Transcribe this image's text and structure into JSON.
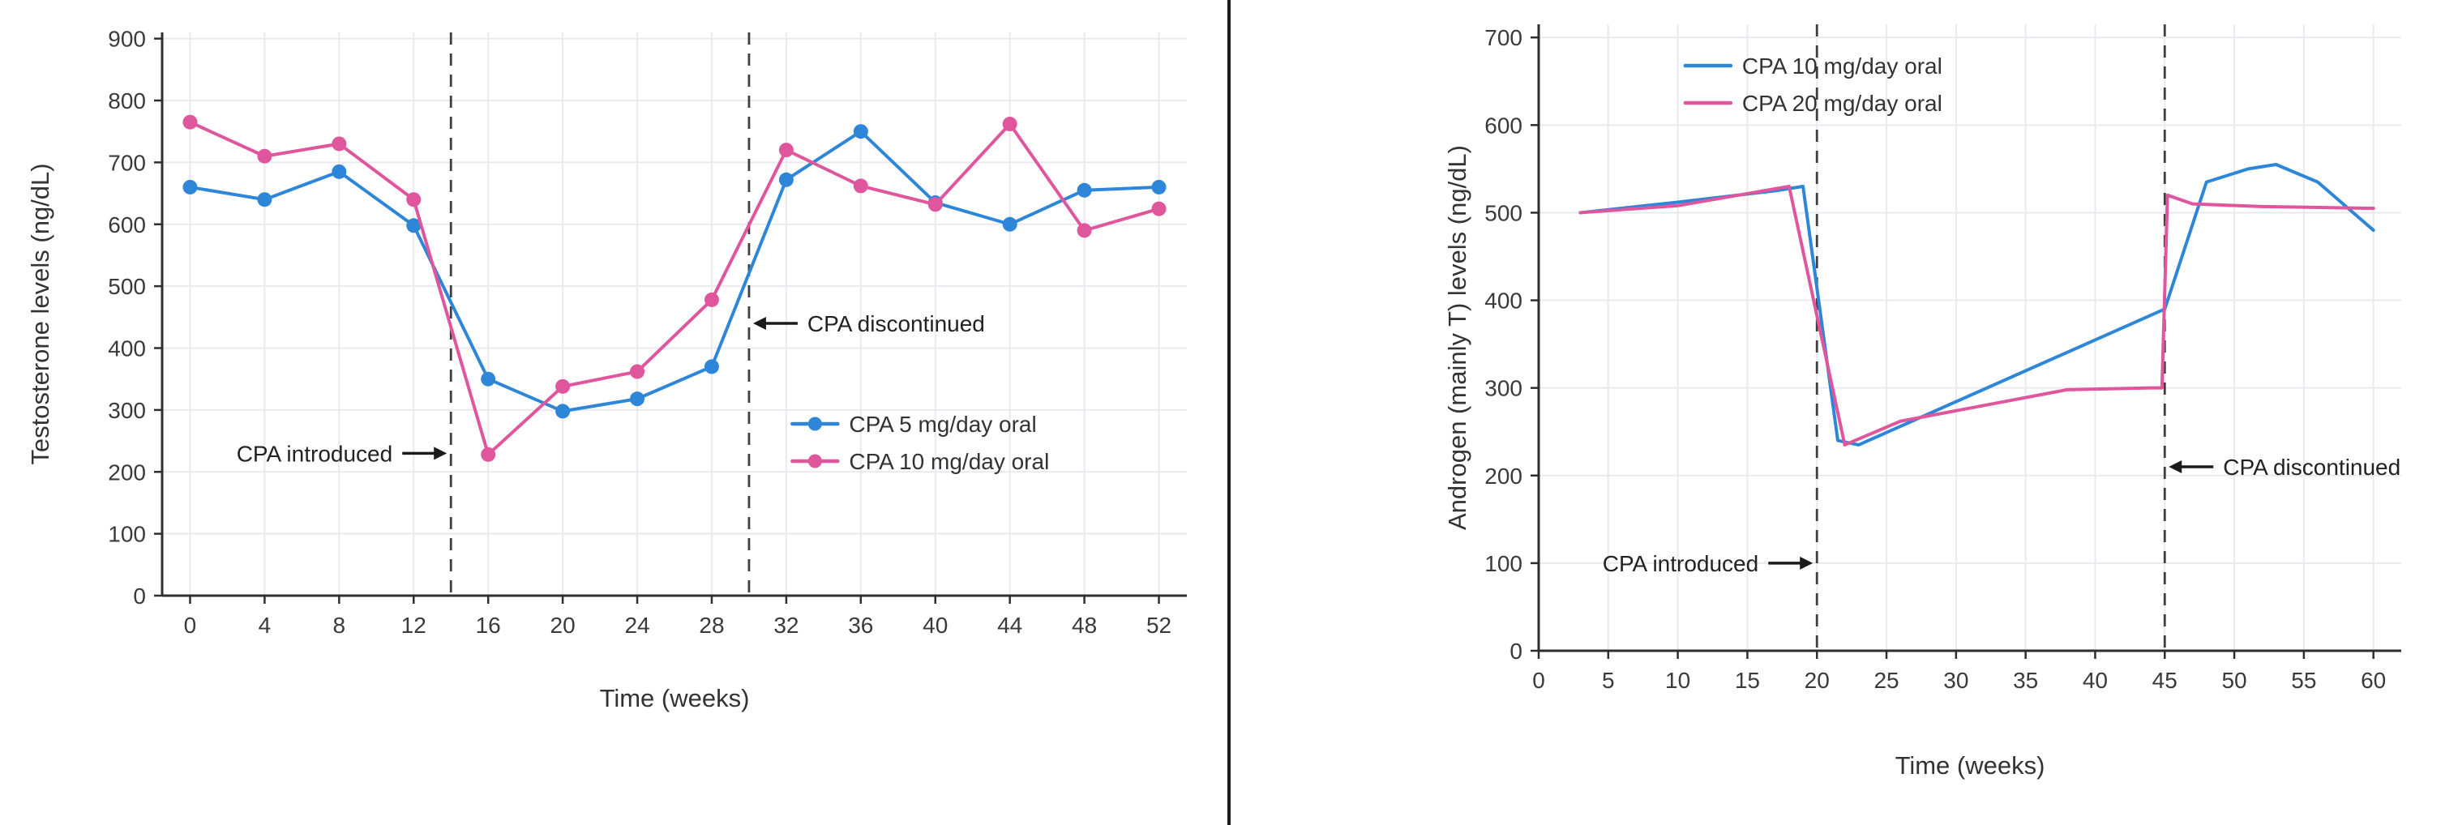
{
  "page": {
    "background": "#ffffff"
  },
  "palette": {
    "blue": "#2e86d9",
    "pink": "#e0569d",
    "grid": "#e9e9f0",
    "axis": "#2e2e2e",
    "tick_text": "#3a3a3a",
    "label_text": "#333333",
    "vline": "#3f3f3f",
    "annotation": "#1b1b1b",
    "divider": "#1c1c1c"
  },
  "chart_data": [
    {
      "id": "testosterone",
      "type": "line",
      "title": "",
      "xlabel": "Time (weeks)",
      "ylabel": "Testosterone levels (ng/dL)",
      "xlim": [
        -1.5,
        53.5
      ],
      "ylim": [
        0,
        910
      ],
      "xticks": [
        0,
        4,
        8,
        12,
        16,
        20,
        24,
        28,
        32,
        36,
        40,
        44,
        48,
        52
      ],
      "yticks": [
        0,
        100,
        200,
        300,
        400,
        500,
        600,
        700,
        800,
        900
      ],
      "grid": true,
      "markers": true,
      "x": [
        0,
        4,
        8,
        12,
        16,
        20,
        24,
        28,
        32,
        36,
        40,
        44,
        48,
        52
      ],
      "series": [
        {
          "name": "CPA 5 mg/day oral",
          "color_key": "blue",
          "values": [
            660,
            640,
            685,
            598,
            350,
            298,
            318,
            370,
            672,
            750,
            635,
            600,
            655,
            660
          ]
        },
        {
          "name": "CPA 10 mg/day oral",
          "color_key": "pink",
          "values": [
            765,
            710,
            730,
            640,
            228,
            338,
            362,
            478,
            720,
            662,
            632,
            762,
            590,
            625
          ]
        }
      ],
      "vlines": [
        14,
        30
      ],
      "annotations": [
        {
          "text": "CPA introduced",
          "target_x": 14,
          "y": 230,
          "side": "left"
        },
        {
          "text": "CPA discontinued",
          "target_x": 30,
          "y": 440,
          "side": "right"
        }
      ],
      "legend": {
        "position": "inside lower-right",
        "fx": 0.615,
        "fy": 0.695
      }
    },
    {
      "id": "androgen",
      "type": "line",
      "title": "",
      "xlabel": "Time (weeks)",
      "ylabel": "Androgen (mainly T) levels (ng/dL)",
      "xlim": [
        0,
        62
      ],
      "ylim": [
        0,
        715
      ],
      "xticks": [
        0,
        5,
        10,
        15,
        20,
        25,
        30,
        35,
        40,
        45,
        50,
        55,
        60
      ],
      "yticks": [
        0,
        100,
        200,
        300,
        400,
        500,
        600,
        700
      ],
      "grid": true,
      "markers": false,
      "series": [
        {
          "name": "CPA 10 mg/day oral",
          "color_key": "blue",
          "x": [
            3,
            10,
            17,
            19,
            21.5,
            23,
            45,
            48,
            51,
            53,
            56,
            60
          ],
          "values": [
            500,
            512,
            525,
            530,
            240,
            235,
            390,
            535,
            550,
            555,
            535,
            480
          ]
        },
        {
          "name": "CPA 20 mg/day oral",
          "color_key": "pink",
          "x": [
            3,
            10,
            18,
            22,
            26,
            32,
            38,
            44,
            44.8,
            45.2,
            47,
            52,
            60
          ],
          "values": [
            500,
            508,
            530,
            235,
            262,
            280,
            298,
            300,
            300,
            520,
            510,
            507,
            505
          ]
        }
      ],
      "vlines": [
        20,
        45
      ],
      "annotations": [
        {
          "text": "CPA introduced",
          "target_x": 20,
          "y": 100,
          "side": "left"
        },
        {
          "text": "CPA discontinued",
          "target_x": 45,
          "y": 210,
          "side": "right"
        }
      ],
      "legend": {
        "position": "inside upper-left",
        "fx": 0.17,
        "fy": 0.066
      }
    }
  ]
}
